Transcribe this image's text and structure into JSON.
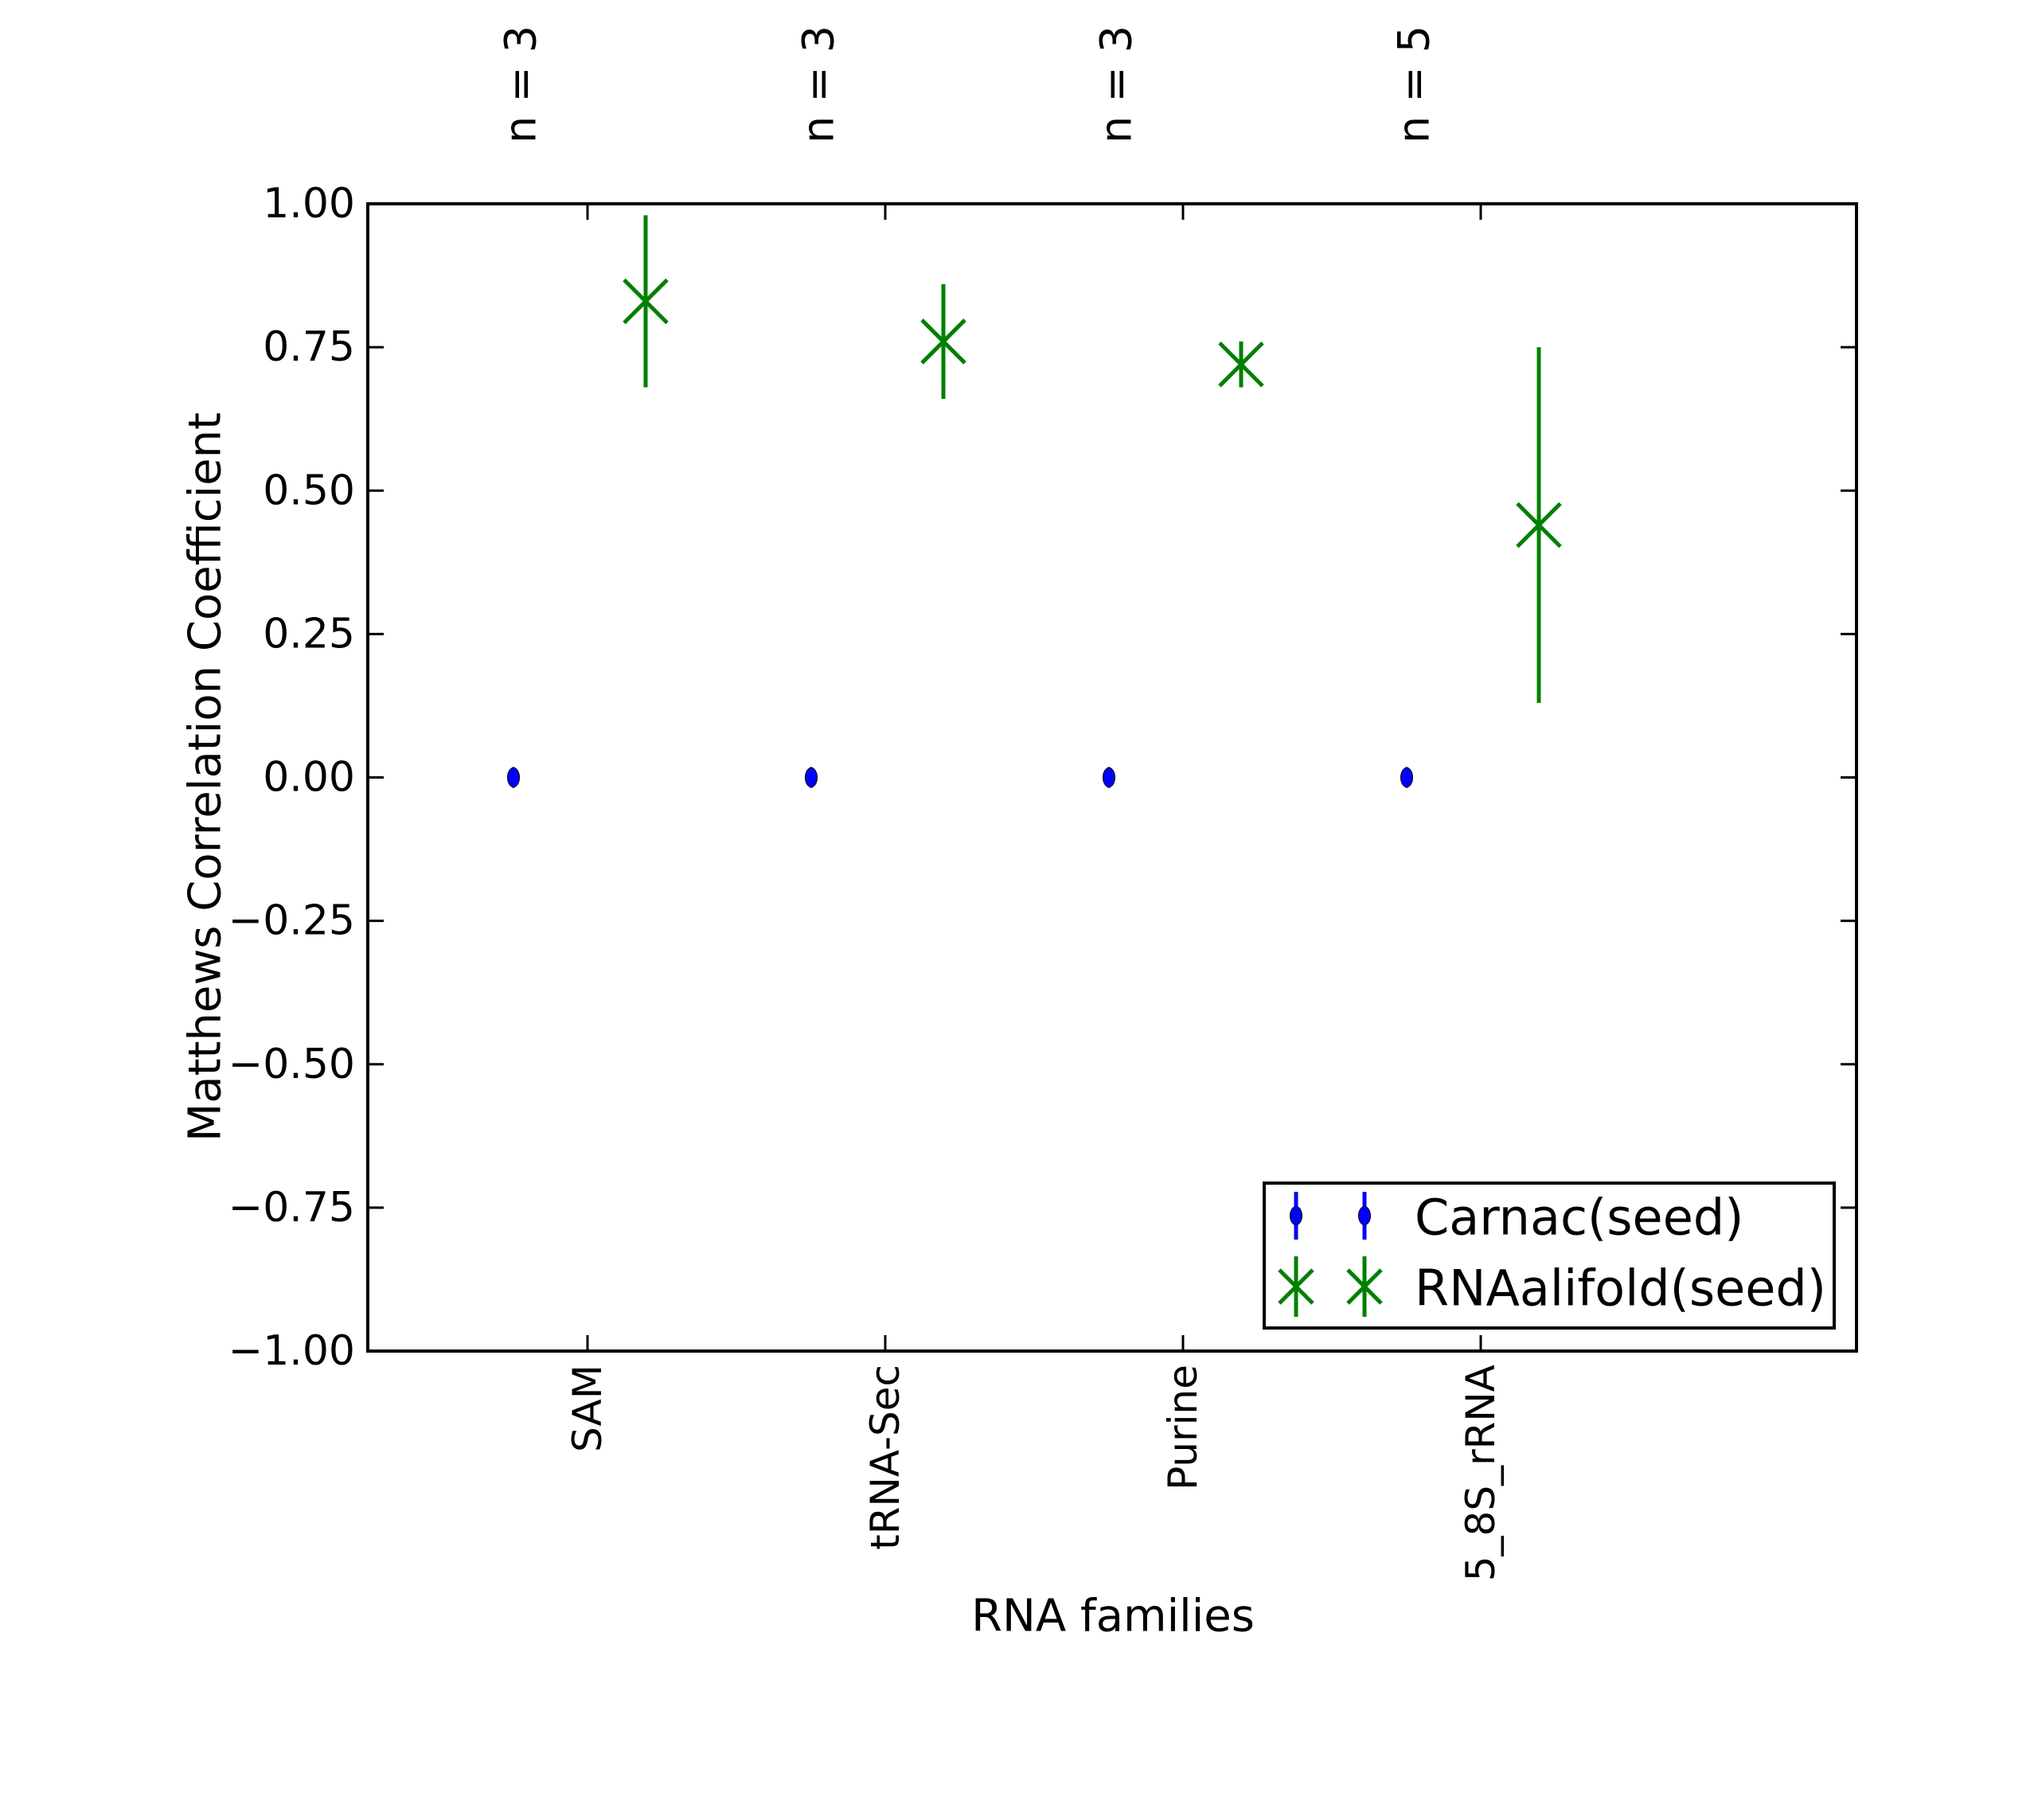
{
  "figure": {
    "background": "#ffffff",
    "axis_color": "#000000"
  },
  "chart_data": {
    "type": "scatter",
    "subtype": "errorbar",
    "title": "",
    "xlabel": "RNA families",
    "ylabel": "Matthews Correlation Coefficient",
    "categories": [
      "SAM",
      "tRNA-Sec",
      "Purine",
      "5_8S_rRNA"
    ],
    "top_annotations": [
      "n = 3",
      "n = 3",
      "n = 3",
      "n = 5"
    ],
    "ylim": [
      -1.0,
      1.0
    ],
    "y_tick_values": [
      1.0,
      0.75,
      0.5,
      0.25,
      0.0,
      -0.25,
      -0.5,
      -0.75,
      -1.0
    ],
    "y_tick_labels": [
      "1.00",
      "0.75",
      "0.50",
      "0.25",
      "0.00",
      "−0.25",
      "−0.50",
      "−0.75",
      "−1.00"
    ],
    "grid": false,
    "legend_position": "lower right",
    "series": [
      {
        "name": "Carnac(seed)",
        "color": "#0000ff",
        "marker": "circle",
        "values": [
          0.0,
          0.0,
          0.0,
          0.0
        ],
        "err_minus": [
          0.0,
          0.0,
          0.0,
          0.0
        ],
        "err_plus": [
          0.0,
          0.0,
          0.0,
          0.0
        ]
      },
      {
        "name": "RNAalifold(seed)",
        "color": "#008000",
        "marker": "x",
        "values": [
          0.83,
          0.76,
          0.72,
          0.44
        ],
        "err_minus": [
          0.15,
          0.1,
          0.04,
          0.31
        ],
        "err_plus": [
          0.15,
          0.1,
          0.04,
          0.31
        ]
      }
    ]
  }
}
